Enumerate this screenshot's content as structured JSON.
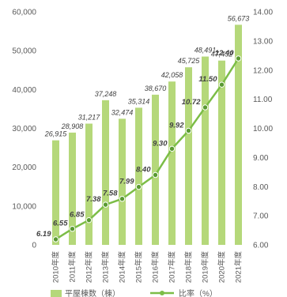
{
  "chart_data": {
    "type": "bar",
    "categories": [
      "2010年度",
      "2011年度",
      "2012年度",
      "2013年度",
      "2014年度",
      "2015年度",
      "2016年度",
      "2017年度",
      "2018年度",
      "2019年度",
      "2020年度",
      "2021年度"
    ],
    "series": [
      {
        "name": "平屋棟数（棟）",
        "chart_type": "bar",
        "axis": "left",
        "color": "#b5d87a",
        "values": [
          26915,
          28908,
          31217,
          37248,
          32474,
          35314,
          38670,
          42058,
          45725,
          48491,
          47452,
          56673
        ],
        "labels": [
          "26,915",
          "28,908",
          "31,217",
          "37,248",
          "32,474",
          "35,314",
          "38,670",
          "42,058",
          "45,725",
          "48,491",
          "47,452",
          "56,673"
        ]
      },
      {
        "name": "比率（%）",
        "chart_type": "line",
        "axis": "right",
        "color": "#7cbd47",
        "values": [
          6.19,
          6.55,
          6.85,
          7.38,
          7.58,
          7.99,
          8.4,
          9.3,
          9.92,
          10.72,
          11.5,
          12.4
        ],
        "labels": [
          "6.19",
          "6.55",
          "6.85",
          "7.38",
          "7.58",
          "7.99",
          "8.40",
          "9.30",
          "9.92",
          "10.72",
          "11.50",
          "12.40"
        ]
      }
    ],
    "y_left": {
      "ylim": [
        0,
        60000
      ],
      "ticks": [
        "0",
        "10,000",
        "20,000",
        "30,000",
        "40,000",
        "50,000",
        "60,000"
      ]
    },
    "y_right": {
      "ylim": [
        6.0,
        14.0
      ],
      "ticks": [
        "6.00",
        "7.00",
        "8.00",
        "9.00",
        "10.00",
        "11.00",
        "12.00",
        "13.00",
        "14.00"
      ]
    },
    "grid": false,
    "legend_position": "bottom"
  }
}
